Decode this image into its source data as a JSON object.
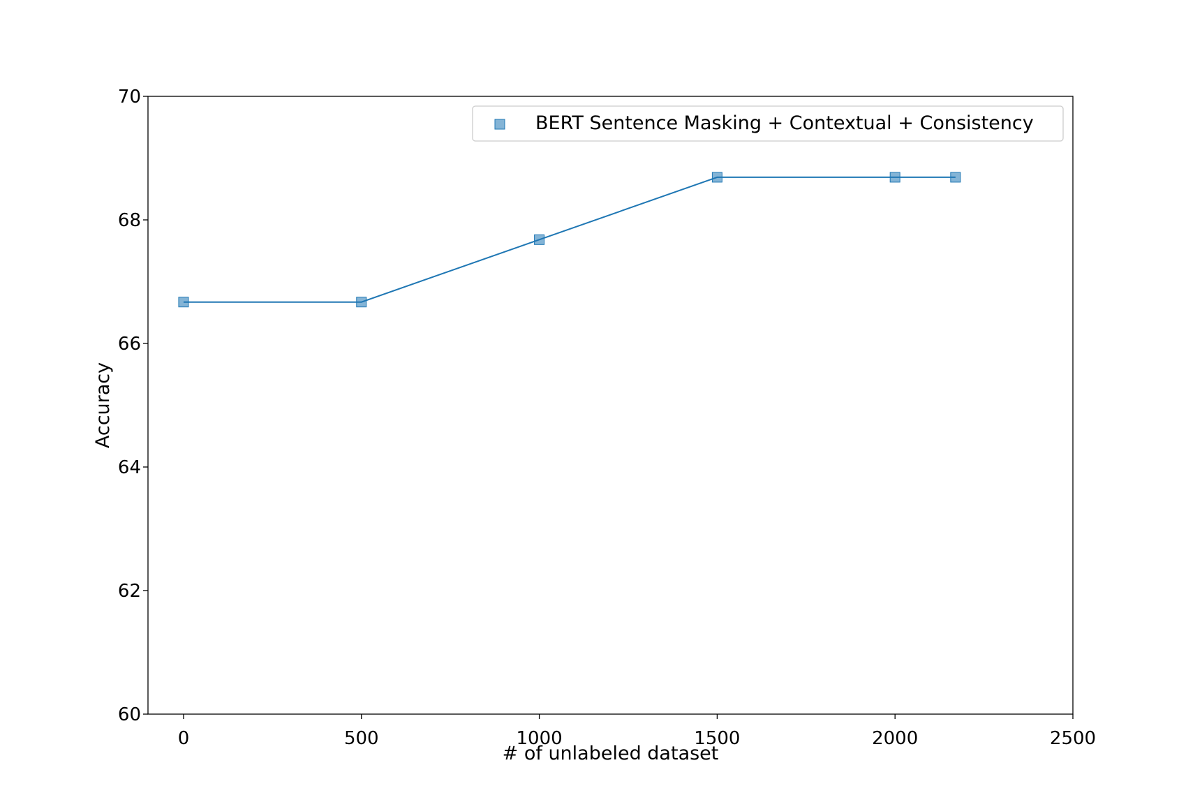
{
  "chart_data": {
    "type": "line",
    "title": "",
    "xlabel": "# of unlabeled dataset",
    "ylabel": "Accuracy",
    "xlim": [
      -100,
      2500
    ],
    "ylim": [
      60,
      70
    ],
    "xticks": [
      0,
      500,
      1000,
      1500,
      2000,
      2500
    ],
    "yticks": [
      60,
      62,
      64,
      66,
      68,
      70
    ],
    "grid": false,
    "legend_position": "top-right",
    "series": [
      {
        "name": "BERT Sentence Masking + Contextual + Consistency",
        "color": "#1f77b4",
        "marker": "square",
        "x": [
          0,
          500,
          1000,
          1500,
          2000,
          2170
        ],
        "y": [
          66.67,
          66.67,
          67.68,
          68.69,
          68.69,
          68.69
        ]
      }
    ]
  }
}
